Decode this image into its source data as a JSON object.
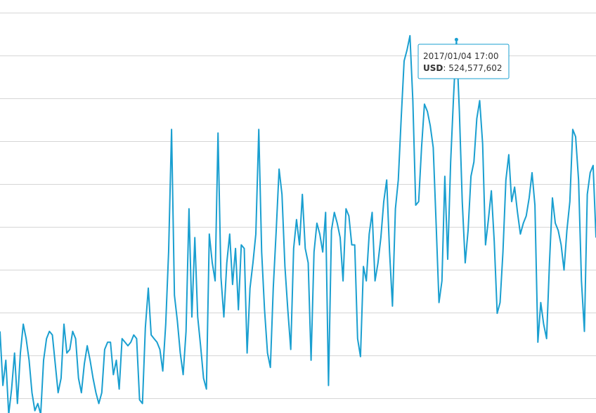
{
  "chart_data": {
    "type": "line",
    "title": "",
    "xlabel": "",
    "ylabel": "",
    "ylim": [
      0,
      560000000
    ],
    "grid": true,
    "legend": "none",
    "series": [
      {
        "color": "#1a9fd0",
        "values": [
          120000000,
          45000000,
          80000000,
          5000000,
          40000000,
          90000000,
          20000000,
          90000000,
          130000000,
          110000000,
          80000000,
          35000000,
          10000000,
          20000000,
          5000000,
          80000000,
          110000000,
          120000000,
          115000000,
          75000000,
          35000000,
          55000000,
          130000000,
          90000000,
          95000000,
          120000000,
          110000000,
          55000000,
          35000000,
          75000000,
          100000000,
          80000000,
          55000000,
          35000000,
          20000000,
          35000000,
          95000000,
          105000000,
          105000000,
          60000000,
          80000000,
          40000000,
          110000000,
          105000000,
          100000000,
          105000000,
          115000000,
          110000000,
          25000000,
          20000000,
          125000000,
          180000000,
          115000000,
          110000000,
          105000000,
          95000000,
          65000000,
          130000000,
          230000000,
          400000000,
          170000000,
          135000000,
          90000000,
          60000000,
          120000000,
          290000000,
          140000000,
          250000000,
          140000000,
          100000000,
          55000000,
          40000000,
          255000000,
          215000000,
          190000000,
          395000000,
          195000000,
          140000000,
          215000000,
          255000000,
          185000000,
          235000000,
          150000000,
          240000000,
          235000000,
          90000000,
          180000000,
          215000000,
          255000000,
          400000000,
          230000000,
          150000000,
          90000000,
          70000000,
          180000000,
          260000000,
          345000000,
          310000000,
          210000000,
          150000000,
          95000000,
          235000000,
          275000000,
          240000000,
          310000000,
          235000000,
          215000000,
          80000000,
          230000000,
          270000000,
          255000000,
          230000000,
          285000000,
          45000000,
          260000000,
          285000000,
          270000000,
          250000000,
          190000000,
          290000000,
          280000000,
          240000000,
          240000000,
          110000000,
          85000000,
          210000000,
          190000000,
          255000000,
          285000000,
          190000000,
          215000000,
          250000000,
          300000000,
          330000000,
          230000000,
          155000000,
          290000000,
          330000000,
          415000000,
          495000000,
          510000000,
          530000000,
          440000000,
          295000000,
          300000000,
          375000000,
          435000000,
          425000000,
          405000000,
          375000000,
          270000000,
          160000000,
          190000000,
          335000000,
          220000000,
          355000000,
          445000000,
          524577602,
          425000000,
          300000000,
          215000000,
          260000000,
          335000000,
          355000000,
          415000000,
          440000000,
          380000000,
          240000000,
          275000000,
          315000000,
          245000000,
          145000000,
          160000000,
          230000000,
          330000000,
          365000000,
          300000000,
          320000000,
          285000000,
          255000000,
          270000000,
          280000000,
          305000000,
          340000000,
          295000000,
          105000000,
          160000000,
          130000000,
          110000000,
          215000000,
          305000000,
          270000000,
          260000000,
          240000000,
          205000000,
          260000000,
          300000000,
          400000000,
          390000000,
          330000000,
          190000000,
          120000000,
          310000000,
          340000000,
          350000000,
          250000000
        ]
      }
    ],
    "tooltip": {
      "date": "2017/01/04 17:00",
      "label": "USD",
      "value": "524,577,602",
      "value_numeric": 524577602
    }
  }
}
